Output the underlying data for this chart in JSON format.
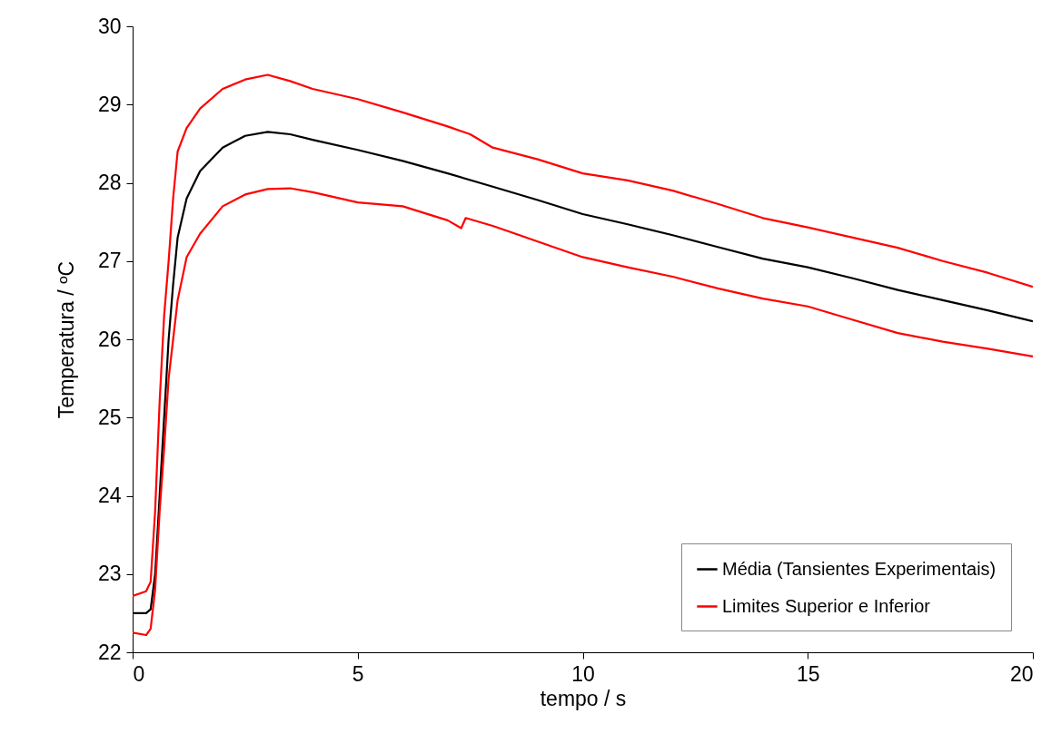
{
  "chart_data": {
    "type": "line",
    "xlabel": "tempo  / s",
    "ylabel": "Temperatura / ºC",
    "xlim": [
      0,
      20
    ],
    "xticks": [
      0,
      5,
      10,
      15,
      20
    ],
    "ylim": [
      22,
      30
    ],
    "yticks": [
      22,
      23,
      24,
      25,
      26,
      27,
      28,
      29,
      30
    ],
    "grid": false,
    "legend": "bottom right",
    "line_style": "solid",
    "marker": "none",
    "series": [
      {
        "name": "Média (Tansientes Experimentais)",
        "color": "#000000",
        "x": [
          0,
          0.3,
          0.4,
          0.5,
          0.6,
          0.7,
          0.8,
          0.9,
          1.0,
          1.2,
          1.5,
          2.0,
          2.5,
          3.0,
          3.5,
          4,
          5,
          6,
          7,
          8,
          9,
          10,
          11,
          12,
          13,
          14,
          15,
          16,
          17,
          18,
          19,
          20
        ],
        "values": [
          22.5,
          22.5,
          22.55,
          23.0,
          24.0,
          25.0,
          26.0,
          26.7,
          27.3,
          27.8,
          28.15,
          28.45,
          28.6,
          28.65,
          28.62,
          28.55,
          28.42,
          28.28,
          28.12,
          27.95,
          27.78,
          27.6,
          27.47,
          27.33,
          27.18,
          27.03,
          26.92,
          26.78,
          26.63,
          26.5,
          26.37,
          26.23
        ]
      },
      {
        "name": "Limites Superior e Inferior",
        "color": "#ff0000",
        "x": [
          0,
          0.3,
          0.4,
          0.5,
          0.6,
          0.7,
          0.8,
          0.9,
          1.0,
          1.2,
          1.5,
          2.0,
          2.5,
          3.0,
          3.5,
          4,
          5,
          6,
          7,
          7.5,
          8,
          9,
          10,
          11,
          12,
          13,
          14,
          15,
          16,
          17,
          18,
          19,
          20
        ],
        "values": [
          22.72,
          22.78,
          22.9,
          23.8,
          25.2,
          26.3,
          27.0,
          27.8,
          28.4,
          28.7,
          28.95,
          29.2,
          29.32,
          29.38,
          29.3,
          29.2,
          29.07,
          28.9,
          28.72,
          28.62,
          28.45,
          28.3,
          28.12,
          28.03,
          27.9,
          27.73,
          27.55,
          27.43,
          27.3,
          27.17,
          27.0,
          26.85,
          26.67
        ]
      },
      {
        "color": "#ff0000",
        "x": [
          0,
          0.3,
          0.4,
          0.5,
          0.6,
          0.7,
          0.8,
          0.9,
          1.0,
          1.2,
          1.5,
          2.0,
          2.5,
          3.0,
          3.5,
          4,
          5,
          6,
          7,
          7.3,
          7.4,
          8,
          9,
          10,
          11,
          12,
          13,
          14,
          15,
          16,
          17,
          18,
          19,
          20
        ],
        "values": [
          22.25,
          22.22,
          22.3,
          22.8,
          23.8,
          24.6,
          25.5,
          26.0,
          26.5,
          27.05,
          27.35,
          27.7,
          27.85,
          27.92,
          27.93,
          27.88,
          27.75,
          27.7,
          27.52,
          27.42,
          27.55,
          27.45,
          27.25,
          27.05,
          26.92,
          26.8,
          26.65,
          26.52,
          26.42,
          26.25,
          26.08,
          25.97,
          25.88,
          25.78
        ]
      }
    ]
  }
}
